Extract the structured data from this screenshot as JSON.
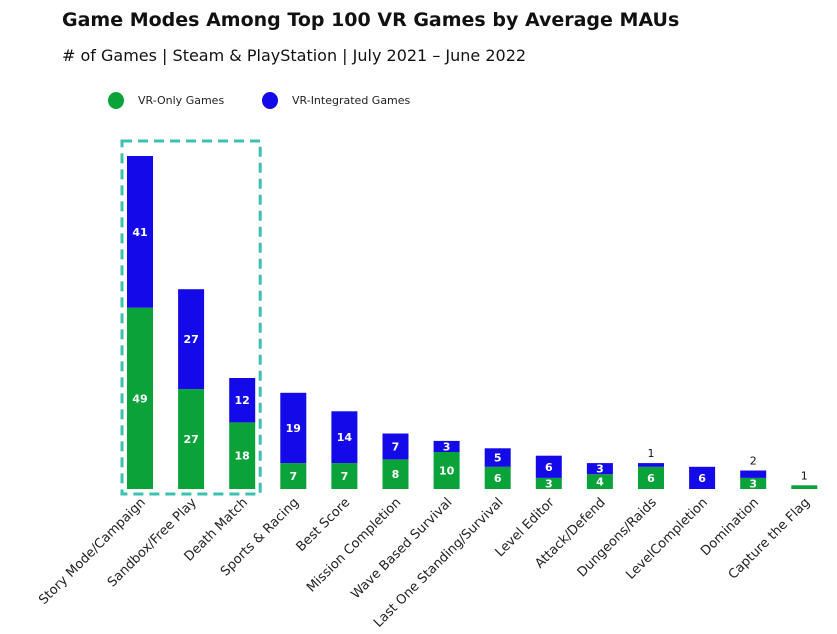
{
  "chart_data": {
    "type": "bar",
    "stacked": true,
    "title": "Game Modes Among Top 100 VR Games by Average MAUs",
    "subtitle": "# of Games | Steam & PlayStation | July 2021 – June 2022",
    "legend_position": "top-left",
    "grid": false,
    "categories": [
      "Story Mode/Campaign",
      "Sandbox/Free Play",
      "Death Match",
      "Sports & Racing",
      "Best Score",
      "Mission Completion",
      "Wave Based Survival",
      "Last One Standing/Survival",
      "Level Editor",
      "Attack/Defend",
      "Dungeons/Raids",
      "LevelCompletion",
      "Domination",
      "Capture the Flag"
    ],
    "series": [
      {
        "name": "VR-Only Games",
        "color": "#0aa33a",
        "values": [
          49,
          27,
          18,
          7,
          7,
          8,
          10,
          6,
          3,
          4,
          6,
          0,
          3,
          1
        ]
      },
      {
        "name": "VR-Integrated Games",
        "color": "#1409e8",
        "values": [
          41,
          27,
          12,
          19,
          14,
          7,
          3,
          5,
          6,
          3,
          1,
          6,
          2,
          0
        ]
      }
    ],
    "highlight_color": "#3cc1b0",
    "highlighted_categories": [
      "Story Mode/Campaign",
      "Sandbox/Free Play",
      "Death Match"
    ]
  }
}
